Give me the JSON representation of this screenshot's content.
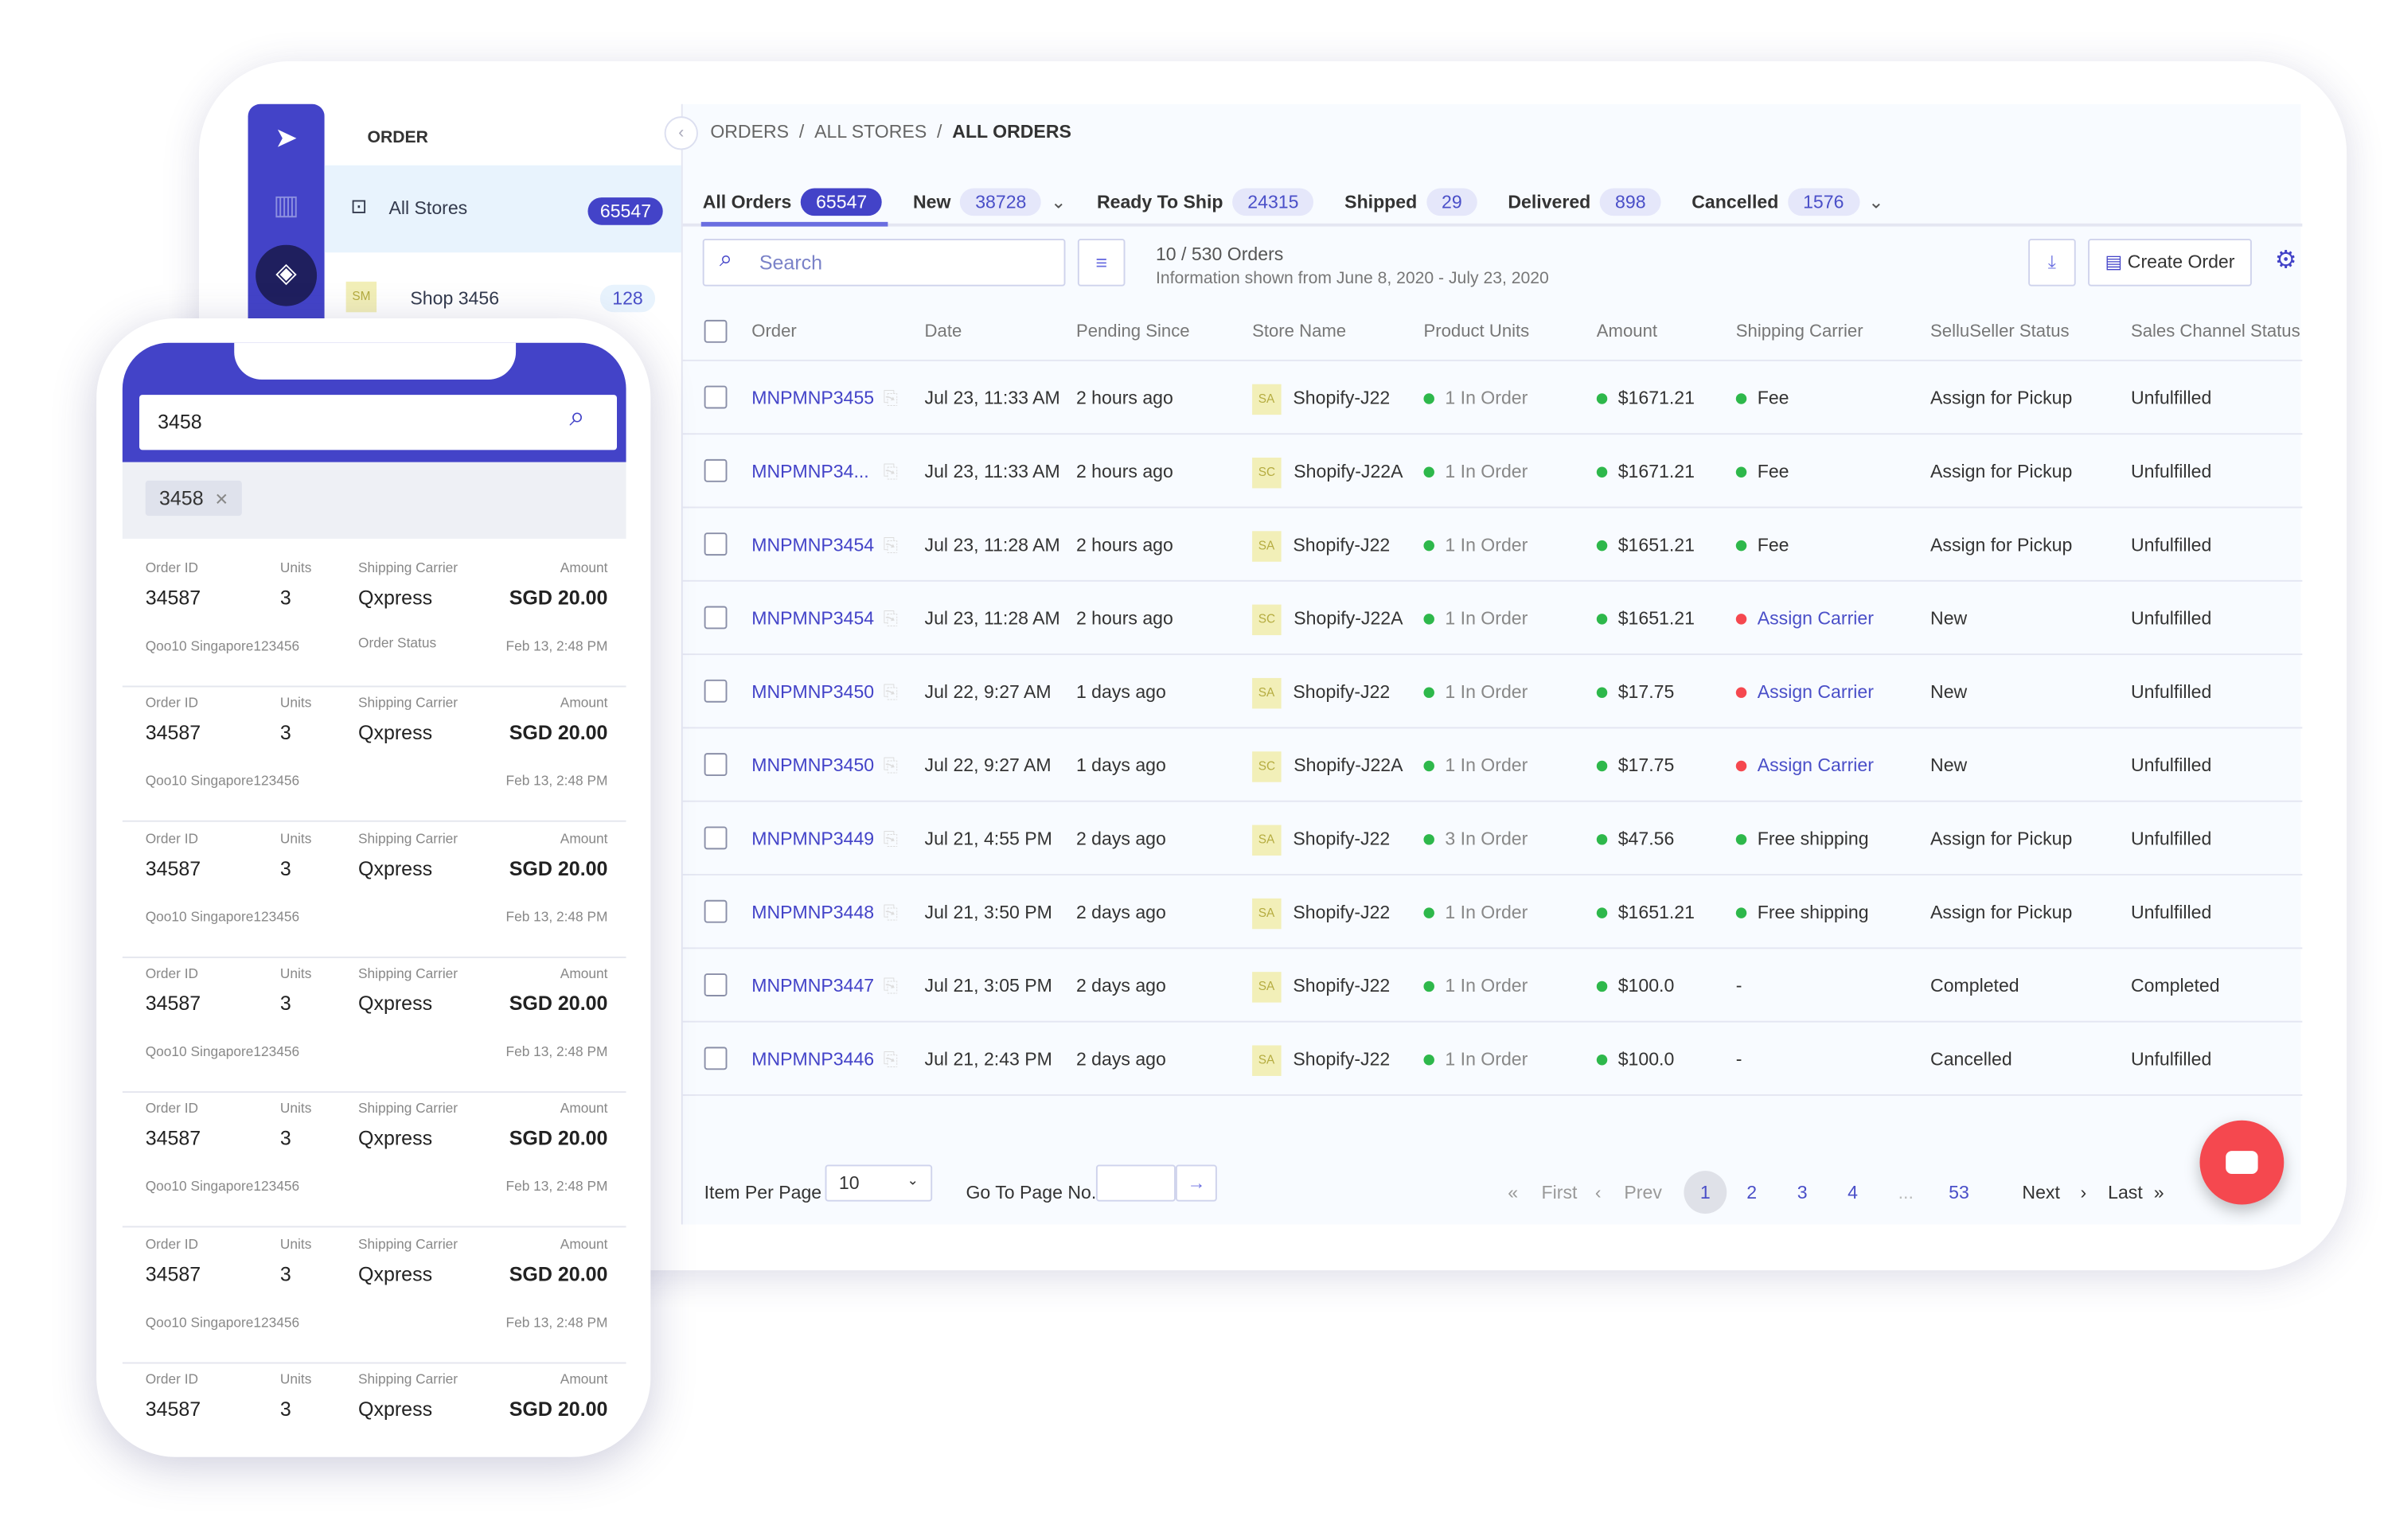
{
  "sidebar": {
    "section": "ORDER",
    "items": [
      {
        "label": "All Stores",
        "count": "65547"
      },
      {
        "label": "Shop 3456",
        "tag": "SM",
        "count": "128"
      }
    ],
    "icons": [
      "logo-icon",
      "layout-icon",
      "layers-icon"
    ]
  },
  "breadcrumb": [
    "ORDERS",
    "ALL STORES",
    "ALL ORDERS"
  ],
  "tabs": [
    {
      "label": "All Orders",
      "count": "65547",
      "active": true
    },
    {
      "label": "New",
      "count": "38728",
      "dropdown": true
    },
    {
      "label": "Ready To Ship",
      "count": "24315"
    },
    {
      "label": "Shipped",
      "count": "29"
    },
    {
      "label": "Delivered",
      "count": "898"
    },
    {
      "label": "Cancelled",
      "count": "1576",
      "dropdown": true
    }
  ],
  "toolbar": {
    "search_placeholder": "Search",
    "count_text": "10 / 530 Orders",
    "info": "Information shown from June 8, 2020 - July 23, 2020",
    "create_label": "Create Order"
  },
  "table": {
    "headers": [
      "Order",
      "Date",
      "Pending Since",
      "Store Name",
      "Product Units",
      "Amount",
      "Shipping Carrier",
      "SelluSeller Status",
      "Sales Channel Status"
    ],
    "rows": [
      [
        "MNPMNP3455",
        "Jul 23, 11:33 AM",
        "2 hours ago",
        "SA",
        "Shopify-J22",
        "1 In Order",
        "$1671.21",
        "Fee",
        "Assign for Pickup",
        "Unfulfilled"
      ],
      [
        "MNPMNP34...",
        "Jul 23, 11:33 AM",
        "2 hours ago",
        "SC",
        "Shopify-J22A",
        "1 In Order",
        "$1671.21",
        "Fee",
        "Assign for Pickup",
        "Unfulfilled"
      ],
      [
        "MNPMNP3454",
        "Jul 23, 11:28 AM",
        "2 hours ago",
        "SA",
        "Shopify-J22",
        "1 In Order",
        "$1651.21",
        "Fee",
        "Assign for Pickup",
        "Unfulfilled"
      ],
      [
        "MNPMNP3454",
        "Jul 23, 11:28 AM",
        "2 hours ago",
        "SC",
        "Shopify-J22A",
        "1 In Order",
        "$1651.21",
        "Assign Carrier",
        "New",
        "Unfulfilled"
      ],
      [
        "MNPMNP3450",
        "Jul 22, 9:27 AM",
        "1 days ago",
        "SA",
        "Shopify-J22",
        "1 In Order",
        "$17.75",
        "Assign Carrier",
        "New",
        "Unfulfilled"
      ],
      [
        "MNPMNP3450",
        "Jul 22, 9:27 AM",
        "1 days ago",
        "SC",
        "Shopify-J22A",
        "1 In Order",
        "$17.75",
        "Assign Carrier",
        "New",
        "Unfulfilled"
      ],
      [
        "MNPMNP3449",
        "Jul 21, 4:55 PM",
        "2 days ago",
        "SA",
        "Shopify-J22",
        "3 In Order",
        "$47.56",
        "Free shipping",
        "Assign for Pickup",
        "Unfulfilled"
      ],
      [
        "MNPMNP3448",
        "Jul 21, 3:50 PM",
        "2 days ago",
        "SA",
        "Shopify-J22",
        "1 In Order",
        "$1651.21",
        "Free shipping",
        "Assign for Pickup",
        "Unfulfilled"
      ],
      [
        "MNPMNP3447",
        "Jul 21, 3:05 PM",
        "2 days ago",
        "SA",
        "Shopify-J22",
        "1 In Order",
        "$100.0",
        "-",
        "Completed",
        "Completed"
      ],
      [
        "MNPMNP3446",
        "Jul 21, 2:43 PM",
        "2 days ago",
        "SA",
        "Shopify-J22",
        "1 In Order",
        "$100.0",
        "-",
        "Cancelled",
        "Unfulfilled"
      ]
    ]
  },
  "footer": {
    "per_page_label": "Item Per Page",
    "per_page": "10",
    "goto_label": "Go To Page No.",
    "first": "First",
    "prev": "Prev",
    "pages": [
      "1",
      "2",
      "3",
      "4",
      "...",
      "53"
    ],
    "current": "1",
    "next": "Next",
    "last": "Last"
  },
  "colors": {
    "brand": "#4343c8",
    "green": "#2eb84b",
    "red": "#f5484f"
  },
  "phone": {
    "search_value": "3458",
    "chip": "3458",
    "labels": {
      "order_id": "Order ID",
      "units": "Units",
      "carrier": "Shipping Carrier",
      "amount": "Amount",
      "status": "Order Status"
    },
    "cards": [
      {
        "id": "34587",
        "units": "3",
        "carrier": "Qxpress",
        "amount": "SGD 20.00",
        "store": "Qoo10 Singapore123456",
        "status_label": "Order Status",
        "date": "Feb 13, 2:48 PM"
      },
      {
        "id": "34587",
        "units": "3",
        "carrier": "Qxpress",
        "amount": "SGD 20.00",
        "store": "Qoo10 Singapore123456",
        "date": "Feb 13, 2:48 PM"
      },
      {
        "id": "34587",
        "units": "3",
        "carrier": "Qxpress",
        "amount": "SGD 20.00",
        "store": "Qoo10 Singapore123456",
        "date": "Feb 13, 2:48 PM"
      },
      {
        "id": "34587",
        "units": "3",
        "carrier": "Qxpress",
        "amount": "SGD 20.00",
        "store": "Qoo10 Singapore123456",
        "date": "Feb 13, 2:48 PM"
      },
      {
        "id": "34587",
        "units": "3",
        "carrier": "Qxpress",
        "amount": "SGD 20.00",
        "store": "Qoo10 Singapore123456",
        "date": "Feb 13, 2:48 PM"
      },
      {
        "id": "34587",
        "units": "3",
        "carrier": "Qxpress",
        "amount": "SGD 20.00",
        "store": "Qoo10 Singapore123456",
        "date": "Feb 13, 2:48 PM"
      },
      {
        "id": "34587",
        "units": "3",
        "carrier": "Qxpress",
        "amount": "SGD 20.00"
      }
    ]
  }
}
